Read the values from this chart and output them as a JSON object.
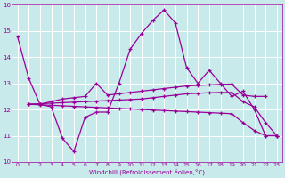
{
  "xlabel": "Windchill (Refroidissement éolien,°C)",
  "background_color": "#c8eaea",
  "grid_color": "#ffffff",
  "line_color": "#990099",
  "xlim": [
    -0.5,
    23.5
  ],
  "ylim": [
    10,
    16
  ],
  "yticks": [
    10,
    11,
    12,
    13,
    14,
    15,
    16
  ],
  "xticks": [
    0,
    1,
    2,
    3,
    4,
    5,
    6,
    7,
    8,
    9,
    10,
    11,
    12,
    13,
    14,
    15,
    16,
    17,
    18,
    19,
    20,
    21,
    22,
    23
  ],
  "series": [
    {
      "x": [
        0,
        1,
        2,
        3,
        4,
        5,
        6,
        7,
        8,
        9,
        10,
        11,
        12,
        13,
        14,
        15,
        16,
        17,
        18,
        19,
        20,
        21,
        22,
        23
      ],
      "y": [
        14.8,
        13.2,
        12.2,
        12.1,
        10.9,
        10.4,
        11.7,
        11.9,
        11.9,
        13.0,
        14.3,
        14.9,
        15.4,
        15.8,
        15.3,
        13.6,
        13.0,
        13.5,
        13.0,
        12.5,
        12.7,
        12.0,
        11.0,
        11.0
      ]
    },
    {
      "x": [
        1,
        2,
        3,
        4,
        5,
        6,
        7,
        8,
        9,
        10,
        11,
        12,
        13,
        14,
        15,
        16,
        17,
        18,
        19,
        20,
        21,
        22
      ],
      "y": [
        12.2,
        12.2,
        12.3,
        12.4,
        12.45,
        12.5,
        13.0,
        12.55,
        12.6,
        12.65,
        12.7,
        12.75,
        12.8,
        12.85,
        12.9,
        12.92,
        12.94,
        12.96,
        12.97,
        12.55,
        12.5,
        12.5
      ]
    },
    {
      "x": [
        1,
        2,
        3,
        4,
        5,
        6,
        7,
        8,
        9,
        10,
        11,
        12,
        13,
        14,
        15,
        16,
        17,
        18,
        19,
        20,
        21,
        22,
        23
      ],
      "y": [
        12.2,
        12.22,
        12.24,
        12.26,
        12.28,
        12.3,
        12.32,
        12.34,
        12.36,
        12.38,
        12.4,
        12.45,
        12.5,
        12.55,
        12.6,
        12.62,
        12.64,
        12.65,
        12.65,
        12.3,
        12.1,
        11.5,
        11.0
      ]
    },
    {
      "x": [
        1,
        2,
        3,
        4,
        5,
        6,
        7,
        8,
        9,
        10,
        11,
        12,
        13,
        14,
        15,
        16,
        17,
        18,
        19,
        20,
        21,
        22,
        23
      ],
      "y": [
        12.2,
        12.18,
        12.16,
        12.14,
        12.12,
        12.1,
        12.08,
        12.06,
        12.04,
        12.02,
        12.0,
        11.98,
        11.96,
        11.94,
        11.92,
        11.9,
        11.88,
        11.86,
        11.84,
        11.5,
        11.2,
        11.0,
        11.0
      ]
    }
  ]
}
